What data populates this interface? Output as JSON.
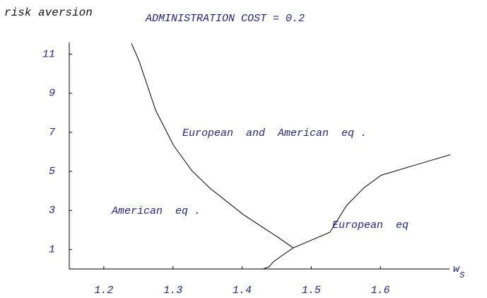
{
  "chart_data": {
    "type": "line",
    "title": "ADMINISTRATION COST = 0.2",
    "y_label": "risk aversion",
    "x_label": {
      "text": "w",
      "subscript": "S"
    },
    "xlim": [
      1.15,
      1.7
    ],
    "xticks": [
      1.2,
      1.3,
      1.4,
      1.5,
      1.6
    ],
    "ylim": [
      0,
      11.6
    ],
    "yticks": [
      1,
      3,
      5,
      7,
      9,
      11
    ],
    "color": "#000000",
    "series": [
      {
        "x": [
          1.24,
          1.251,
          1.275,
          1.301,
          1.327,
          1.353,
          1.402,
          1.452,
          1.474
        ],
        "values": [
          11.55,
          10.65,
          8.12,
          6.32,
          5.05,
          4.15,
          2.78,
          1.62,
          1.08
        ]
      },
      {
        "x": [
          1.43,
          1.439,
          1.445,
          1.459,
          1.474,
          1.527,
          1.551,
          1.576,
          1.601,
          1.652,
          1.701
        ],
        "values": [
          0,
          0.11,
          0.36,
          0.72,
          1.08,
          1.88,
          3.25,
          4.15,
          4.8,
          5.34,
          5.85
        ]
      }
    ],
    "annotations": [
      "European  and  American  eq .",
      "American  eq .",
      "European  eq"
    ]
  }
}
